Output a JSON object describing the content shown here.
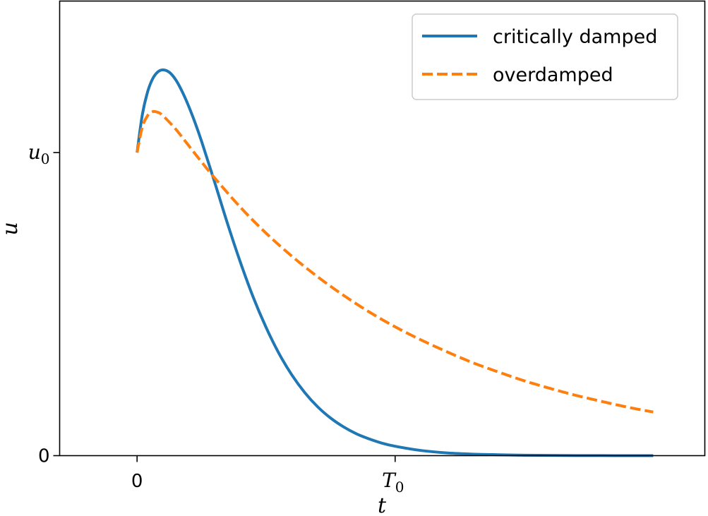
{
  "chart_data": {
    "type": "line",
    "title": "",
    "xlabel": "t",
    "ylabel": "u",
    "grid": false,
    "legend_position": "top-right",
    "x_domain": [
      -0.3,
      2.2
    ],
    "y_domain": [
      0,
      1.5
    ],
    "x_ticks": [
      {
        "value": 0,
        "label": "0",
        "kind": "text"
      },
      {
        "value": 1,
        "label": "T",
        "sub": "0",
        "kind": "math"
      }
    ],
    "y_ticks": [
      {
        "value": 0,
        "label": "0",
        "kind": "text"
      },
      {
        "value": 1,
        "label": "u",
        "sub": "0",
        "kind": "math"
      }
    ],
    "series": [
      {
        "name": "critically damped",
        "color": "#1f77b4",
        "style": "solid",
        "x": [
          0,
          0.02,
          0.04,
          0.06,
          0.08,
          0.1,
          0.125,
          0.15,
          0.175,
          0.2,
          0.225,
          0.25,
          0.3,
          0.35,
          0.4,
          0.45,
          0.5,
          0.55,
          0.6,
          0.65,
          0.7,
          0.75,
          0.8,
          0.85,
          0.9,
          0.95,
          1.0,
          1.1,
          1.2,
          1.3,
          1.4,
          1.5,
          1.6,
          1.7,
          1.8,
          1.9,
          2.0
        ],
        "y": [
          1.0,
          1.123,
          1.198,
          1.243,
          1.266,
          1.273,
          1.265,
          1.24,
          1.201,
          1.153,
          1.098,
          1.037,
          0.904,
          0.767,
          0.639,
          0.523,
          0.423,
          0.337,
          0.266,
          0.208,
          0.161,
          0.124,
          0.095,
          0.072,
          0.055,
          0.041,
          0.031,
          0.017,
          0.009,
          0.005,
          0.003,
          0.0015,
          0.0008,
          0.0004,
          0.0002,
          0.0001,
          0.0001
        ]
      },
      {
        "name": "overdamped",
        "color": "#ff7f0e",
        "style": "dashed",
        "x": [
          0,
          0.02,
          0.04,
          0.06,
          0.08,
          0.1,
          0.15,
          0.2,
          0.25,
          0.3,
          0.4,
          0.5,
          0.6,
          0.7,
          0.8,
          0.9,
          1.0,
          1.1,
          1.2,
          1.3,
          1.4,
          1.5,
          1.6,
          1.7,
          1.8,
          1.9,
          2.0
        ],
        "y": [
          1.0,
          1.083,
          1.121,
          1.135,
          1.133,
          1.122,
          1.077,
          1.023,
          0.969,
          0.917,
          0.82,
          0.734,
          0.658,
          0.59,
          0.529,
          0.474,
          0.425,
          0.382,
          0.343,
          0.307,
          0.276,
          0.247,
          0.222,
          0.199,
          0.179,
          0.16,
          0.144
        ]
      }
    ]
  }
}
